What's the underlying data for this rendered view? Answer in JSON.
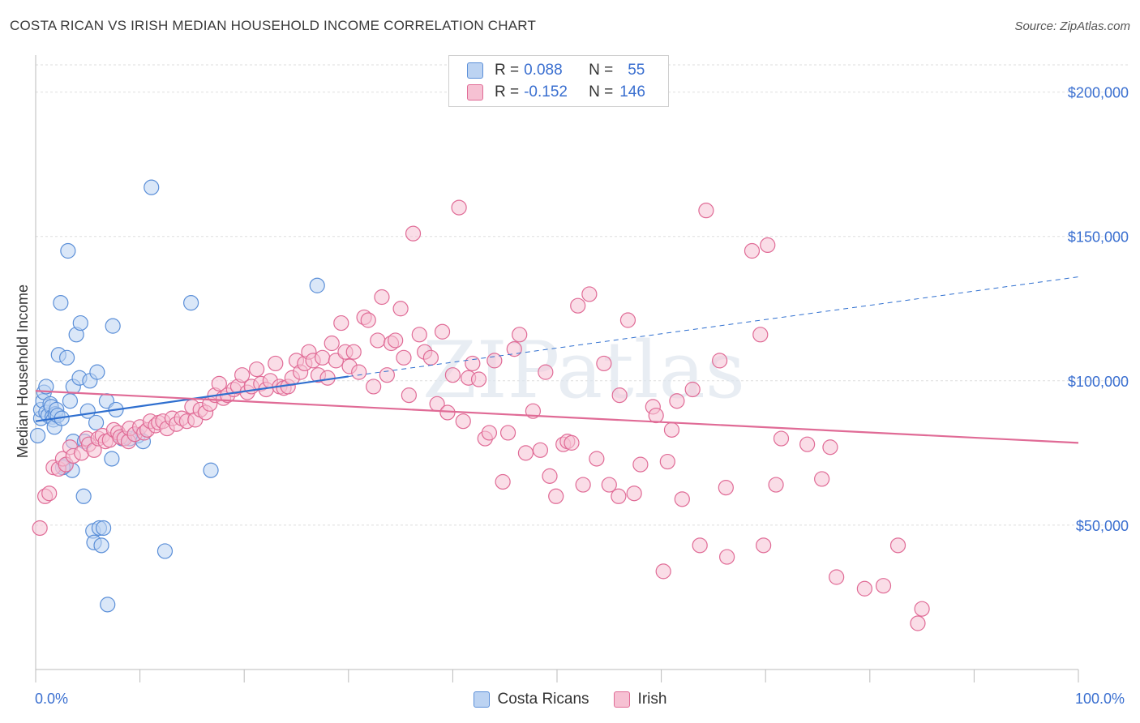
{
  "title": "COSTA RICAN VS IRISH MEDIAN HOUSEHOLD INCOME CORRELATION CHART",
  "source": "Source: ZipAtlas.com",
  "legend": {
    "row1": {
      "r_label": "R = ",
      "r_value": "0.088",
      "n_label": "N = ",
      "n_value": "55"
    },
    "row2": {
      "r_label": "R = ",
      "r_value": "-0.152",
      "n_label": "N = ",
      "n_value": "146"
    }
  },
  "colors": {
    "blue": "#5b8fd8",
    "blue_fill": "#bcd3f2",
    "pink": "#e06b96",
    "pink_fill": "#f6c1d3",
    "tick_text": "#3a6fd0"
  },
  "chart_data": {
    "type": "scatter",
    "ylabel": "Median Household Income",
    "xlim": [
      0,
      100
    ],
    "ylim": [
      0,
      210000
    ],
    "x_tick_labels": [
      "0.0%",
      "100.0%"
    ],
    "y_ticks": [
      50000,
      100000,
      150000,
      200000
    ],
    "y_tick_labels": [
      "$50,000",
      "$100,000",
      "$150,000",
      "$200,000"
    ],
    "grid": true,
    "watermark": "ZIPatlas",
    "series": [
      {
        "name": "Costa Ricans",
        "trend": {
          "x": [
            0,
            30
          ],
          "y": [
            86000,
            101500
          ]
        },
        "trend_extension": {
          "x": [
            30,
            100
          ],
          "y": [
            101500,
            136000
          ]
        },
        "points": [
          [
            0.2,
            81000
          ],
          [
            0.5,
            87000
          ],
          [
            0.5,
            90000
          ],
          [
            0.7,
            93000
          ],
          [
            0.8,
            96000
          ],
          [
            1.0,
            89000
          ],
          [
            1.2,
            88000
          ],
          [
            1.4,
            92000
          ],
          [
            1.5,
            91000
          ],
          [
            1.6,
            87500
          ],
          [
            1.7,
            86500
          ],
          [
            1.8,
            84000
          ],
          [
            1.9,
            88500
          ],
          [
            2.0,
            90000
          ],
          [
            2.1,
            88000
          ],
          [
            2.2,
            109000
          ],
          [
            2.4,
            127000
          ],
          [
            2.5,
            87000
          ],
          [
            2.8,
            70500
          ],
          [
            3.0,
            108000
          ],
          [
            3.1,
            145000
          ],
          [
            3.3,
            93000
          ],
          [
            3.5,
            69000
          ],
          [
            3.6,
            98000
          ],
          [
            3.6,
            79000
          ],
          [
            3.9,
            116000
          ],
          [
            4.2,
            101000
          ],
          [
            4.3,
            120000
          ],
          [
            4.6,
            60000
          ],
          [
            4.7,
            79000
          ],
          [
            5.0,
            89500
          ],
          [
            5.2,
            100000
          ],
          [
            5.5,
            48000
          ],
          [
            5.6,
            44000
          ],
          [
            5.8,
            85500
          ],
          [
            5.9,
            103000
          ],
          [
            6.1,
            49000
          ],
          [
            6.3,
            43000
          ],
          [
            6.5,
            49000
          ],
          [
            6.8,
            93000
          ],
          [
            6.9,
            22500
          ],
          [
            7.3,
            73000
          ],
          [
            7.4,
            119000
          ],
          [
            7.7,
            90000
          ],
          [
            8.3,
            80000
          ],
          [
            9.0,
            80000
          ],
          [
            9.8,
            81000
          ],
          [
            10.3,
            79000
          ],
          [
            11.1,
            167000
          ],
          [
            12.4,
            41000
          ],
          [
            14.9,
            127000
          ],
          [
            16.8,
            69000
          ],
          [
            27.0,
            133000
          ],
          [
            1.0,
            98000
          ],
          [
            2.6,
            70000
          ]
        ]
      },
      {
        "name": "Irish",
        "trend": {
          "x": [
            0,
            100
          ],
          "y": [
            96500,
            78500
          ]
        },
        "points": [
          [
            0.4,
            49000
          ],
          [
            0.9,
            60000
          ],
          [
            1.3,
            61000
          ],
          [
            1.7,
            70000
          ],
          [
            2.2,
            69500
          ],
          [
            2.6,
            73000
          ],
          [
            2.9,
            71000
          ],
          [
            3.3,
            77000
          ],
          [
            3.6,
            74000
          ],
          [
            4.4,
            75000
          ],
          [
            4.9,
            80000
          ],
          [
            5.1,
            78000
          ],
          [
            5.6,
            76000
          ],
          [
            6.0,
            80000
          ],
          [
            6.4,
            81000
          ],
          [
            6.7,
            79000
          ],
          [
            7.1,
            79500
          ],
          [
            7.5,
            83000
          ],
          [
            7.9,
            82000
          ],
          [
            8.1,
            80500
          ],
          [
            8.5,
            80000
          ],
          [
            8.9,
            79000
          ],
          [
            9.0,
            83500
          ],
          [
            9.5,
            81500
          ],
          [
            10.0,
            84000
          ],
          [
            10.4,
            82000
          ],
          [
            10.7,
            83000
          ],
          [
            11.0,
            86000
          ],
          [
            11.5,
            84500
          ],
          [
            11.8,
            85500
          ],
          [
            12.2,
            86000
          ],
          [
            12.6,
            83500
          ],
          [
            13.1,
            87000
          ],
          [
            13.5,
            85000
          ],
          [
            14.0,
            87000
          ],
          [
            14.5,
            86000
          ],
          [
            15.0,
            91000
          ],
          [
            15.3,
            86500
          ],
          [
            15.8,
            90000
          ],
          [
            16.3,
            89000
          ],
          [
            16.7,
            92000
          ],
          [
            17.2,
            95000
          ],
          [
            17.6,
            99000
          ],
          [
            18.0,
            94000
          ],
          [
            18.4,
            95000
          ],
          [
            19.0,
            97000
          ],
          [
            19.4,
            98000
          ],
          [
            19.8,
            102000
          ],
          [
            20.3,
            96000
          ],
          [
            20.7,
            98000
          ],
          [
            21.2,
            104000
          ],
          [
            21.6,
            99000
          ],
          [
            22.1,
            97000
          ],
          [
            22.5,
            100000
          ],
          [
            23.0,
            106000
          ],
          [
            23.4,
            98000
          ],
          [
            23.8,
            97500
          ],
          [
            24.2,
            98000
          ],
          [
            24.6,
            101000
          ],
          [
            25.0,
            107000
          ],
          [
            25.4,
            103000
          ],
          [
            25.8,
            106000
          ],
          [
            26.2,
            110000
          ],
          [
            26.6,
            107000
          ],
          [
            27.1,
            102000
          ],
          [
            27.5,
            108000
          ],
          [
            28.0,
            101000
          ],
          [
            28.4,
            113000
          ],
          [
            28.8,
            107000
          ],
          [
            29.3,
            120000
          ],
          [
            29.7,
            110000
          ],
          [
            30.1,
            105000
          ],
          [
            30.5,
            110000
          ],
          [
            31.0,
            103000
          ],
          [
            31.5,
            122000
          ],
          [
            31.9,
            121000
          ],
          [
            32.4,
            98000
          ],
          [
            32.8,
            114000
          ],
          [
            33.2,
            129000
          ],
          [
            33.7,
            102000
          ],
          [
            34.1,
            113000
          ],
          [
            34.5,
            114000
          ],
          [
            35.0,
            125000
          ],
          [
            35.3,
            108000
          ],
          [
            35.8,
            95000
          ],
          [
            36.2,
            151000
          ],
          [
            36.8,
            116000
          ],
          [
            37.3,
            110000
          ],
          [
            37.9,
            108000
          ],
          [
            38.5,
            92000
          ],
          [
            39.0,
            117000
          ],
          [
            39.5,
            89000
          ],
          [
            40.0,
            102000
          ],
          [
            40.6,
            160000
          ],
          [
            41.0,
            86000
          ],
          [
            41.5,
            101000
          ],
          [
            41.9,
            106000
          ],
          [
            42.5,
            100500
          ],
          [
            43.1,
            80000
          ],
          [
            43.5,
            82000
          ],
          [
            44.0,
            107000
          ],
          [
            44.8,
            65000
          ],
          [
            45.3,
            82000
          ],
          [
            45.9,
            111000
          ],
          [
            46.4,
            116000
          ],
          [
            47.0,
            75000
          ],
          [
            47.7,
            89500
          ],
          [
            48.4,
            76000
          ],
          [
            48.9,
            103000
          ],
          [
            49.3,
            67000
          ],
          [
            49.9,
            60000
          ],
          [
            50.6,
            78000
          ],
          [
            51.0,
            79000
          ],
          [
            51.4,
            78500
          ],
          [
            52.0,
            126000
          ],
          [
            52.5,
            64000
          ],
          [
            53.1,
            130000
          ],
          [
            53.8,
            73000
          ],
          [
            54.5,
            106000
          ],
          [
            55.0,
            64000
          ],
          [
            55.9,
            60000
          ],
          [
            56.0,
            95000
          ],
          [
            56.8,
            121000
          ],
          [
            57.4,
            61000
          ],
          [
            58.0,
            71000
          ],
          [
            59.2,
            91000
          ],
          [
            59.5,
            88000
          ],
          [
            60.2,
            34000
          ],
          [
            60.6,
            72000
          ],
          [
            61.0,
            83000
          ],
          [
            61.5,
            93000
          ],
          [
            62.0,
            59000
          ],
          [
            63.0,
            97000
          ],
          [
            63.7,
            43000
          ],
          [
            64.3,
            159000
          ],
          [
            65.6,
            107000
          ],
          [
            66.2,
            63000
          ],
          [
            66.3,
            39000
          ],
          [
            68.7,
            145000
          ],
          [
            69.5,
            116000
          ],
          [
            69.8,
            43000
          ],
          [
            70.2,
            147000
          ],
          [
            71.0,
            64000
          ],
          [
            71.5,
            80000
          ],
          [
            74.0,
            78000
          ],
          [
            75.4,
            66000
          ],
          [
            76.2,
            77000
          ],
          [
            76.8,
            32000
          ],
          [
            79.5,
            28000
          ],
          [
            81.3,
            29000
          ],
          [
            82.7,
            43000
          ],
          [
            84.6,
            16000
          ],
          [
            85.0,
            21000
          ]
        ]
      }
    ]
  }
}
